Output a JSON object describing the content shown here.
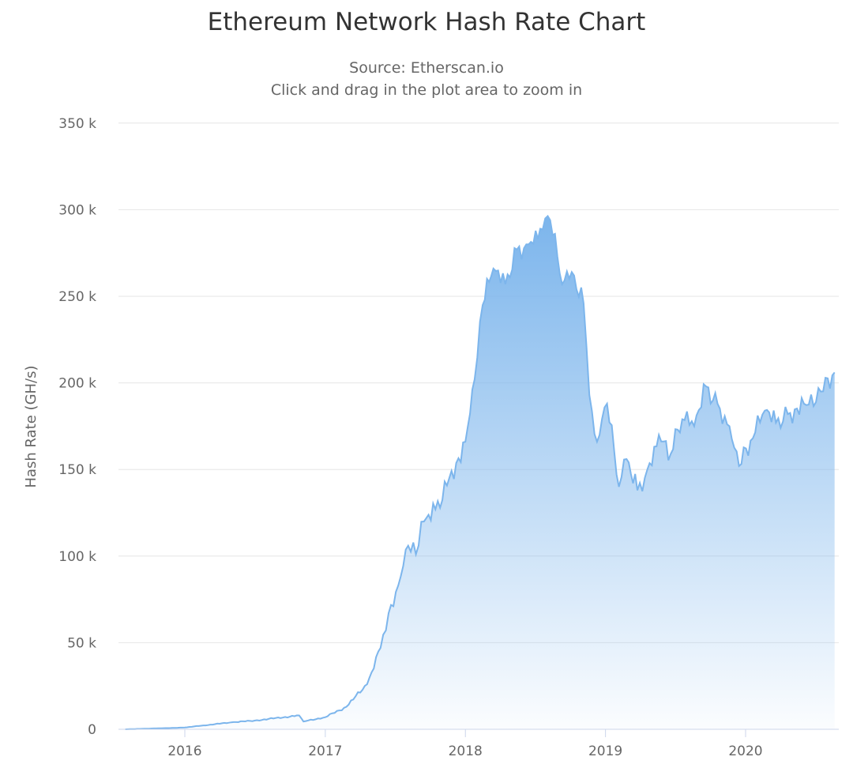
{
  "chart": {
    "title": "Ethereum Network Hash Rate Chart",
    "subtitle_line1": "Source: Etherscan.io",
    "subtitle_line2": "Click and drag in the plot area to zoom in",
    "series_color": "#7cb5ec",
    "fill_top_color": "#7cb5ec",
    "fill_bottom_color": "#ffffff"
  },
  "chart_data": {
    "type": "area",
    "title": "Ethereum Network Hash Rate Chart",
    "subtitle": "Source: Etherscan.io / Click and drag in the plot area to zoom in",
    "xlabel": "",
    "ylabel": "Hash Rate (GH/s)",
    "ylim": [
      0,
      350000
    ],
    "yticks": [
      0,
      50000,
      100000,
      150000,
      200000,
      250000,
      300000,
      350000
    ],
    "ytick_labels": [
      "0",
      "50 k",
      "100 k",
      "150 k",
      "200 k",
      "250 k",
      "300 k",
      "350 k"
    ],
    "xticks": [
      "2016",
      "2017",
      "2018",
      "2019",
      "2020"
    ],
    "grid": true,
    "legend": null,
    "series": [
      {
        "name": "Hash Rate (GH/s)",
        "x": [
          "2015-07-30",
          "2016-01-01",
          "2016-05-01",
          "2016-07-01",
          "2016-10-25",
          "2016-11-05",
          "2017-01-01",
          "2017-02-25",
          "2017-04-20",
          "2017-05-25",
          "2017-06-15",
          "2017-07-10",
          "2017-08-05",
          "2017-08-25",
          "2017-09-15",
          "2017-10-15",
          "2017-11-20",
          "2018-01-01",
          "2018-01-25",
          "2018-02-15",
          "2018-03-15",
          "2018-04-15",
          "2018-05-15",
          "2018-06-15",
          "2018-07-15",
          "2018-08-10",
          "2018-09-10",
          "2018-10-05",
          "2018-11-05",
          "2018-11-20",
          "2018-12-10",
          "2019-01-05",
          "2019-02-05",
          "2019-02-25",
          "2019-03-25",
          "2019-04-20",
          "2019-05-20",
          "2019-06-20",
          "2019-07-20",
          "2019-08-20",
          "2019-09-20",
          "2019-10-20",
          "2019-11-20",
          "2019-12-15",
          "2020-01-20",
          "2020-02-20",
          "2020-03-20",
          "2020-04-20",
          "2020-06-01",
          "2020-07-15",
          "2020-08-20"
        ],
        "values": [
          0,
          1000,
          4000,
          5000,
          8000,
          4500,
          7000,
          13000,
          26000,
          47000,
          67000,
          83000,
          106000,
          101000,
          120000,
          127000,
          145000,
          166000,
          202000,
          245000,
          266000,
          257000,
          277000,
          280000,
          289000,
          294000,
          257000,
          264000,
          246000,
          193000,
          166000,
          188000,
          140000,
          156000,
          138000,
          150000,
          170000,
          159000,
          179000,
          175000,
          198000,
          188000,
          175000,
          152000,
          168000,
          184000,
          177000,
          182000,
          188000,
          195000,
          206000
        ]
      }
    ]
  }
}
